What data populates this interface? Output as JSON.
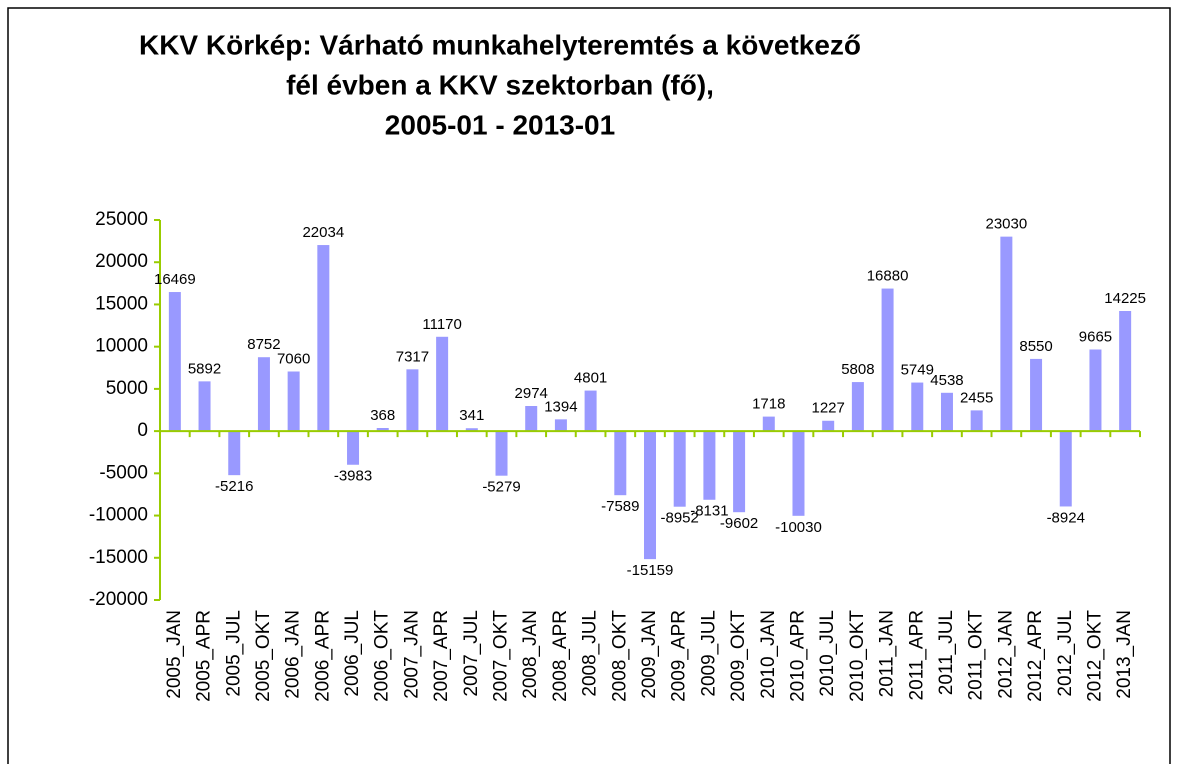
{
  "chart_data": {
    "type": "bar",
    "title": [
      "KKV Körkép: Várható munkahelyteremtés a következő",
      "fél évben a KKV szektorban (fő),",
      "2005-01 - 2013-01"
    ],
    "categories": [
      "2005_JAN",
      "2005_APR",
      "2005_JUL",
      "2005_OKT",
      "2006_JAN",
      "2006_APR",
      "2006_JUL",
      "2006_OKT",
      "2007_JAN",
      "2007_APR",
      "2007_JUL",
      "2007_OKT",
      "2008_JAN",
      "2008_APR",
      "2008_JUL",
      "2008_OKT",
      "2009_JAN",
      "2009_APR",
      "2009_JUL",
      "2009_OKT",
      "2010_JAN",
      "2010_APR",
      "2010_JUL",
      "2010_OKT",
      "2011_JAN",
      "2011_APR",
      "2011_JUL",
      "2011_OKT",
      "2012_JAN",
      "2012_APR",
      "2012_JUL",
      "2012_OKT",
      "2013_JAN"
    ],
    "values": [
      16469,
      5892,
      -5216,
      8752,
      7060,
      22034,
      -3983,
      368,
      7317,
      11170,
      341,
      -5279,
      2974,
      1394,
      4801,
      -7589,
      -15159,
      -8952,
      -8131,
      -9602,
      1718,
      -10030,
      1227,
      5808,
      16880,
      5749,
      4538,
      2455,
      23030,
      8550,
      -8924,
      9665,
      14225
    ],
    "color": "#9999ff",
    "ylim": [
      -20000,
      25000
    ],
    "yticks": [
      -20000,
      -15000,
      -10000,
      -5000,
      0,
      5000,
      10000,
      15000,
      20000,
      25000
    ],
    "grid": false
  }
}
